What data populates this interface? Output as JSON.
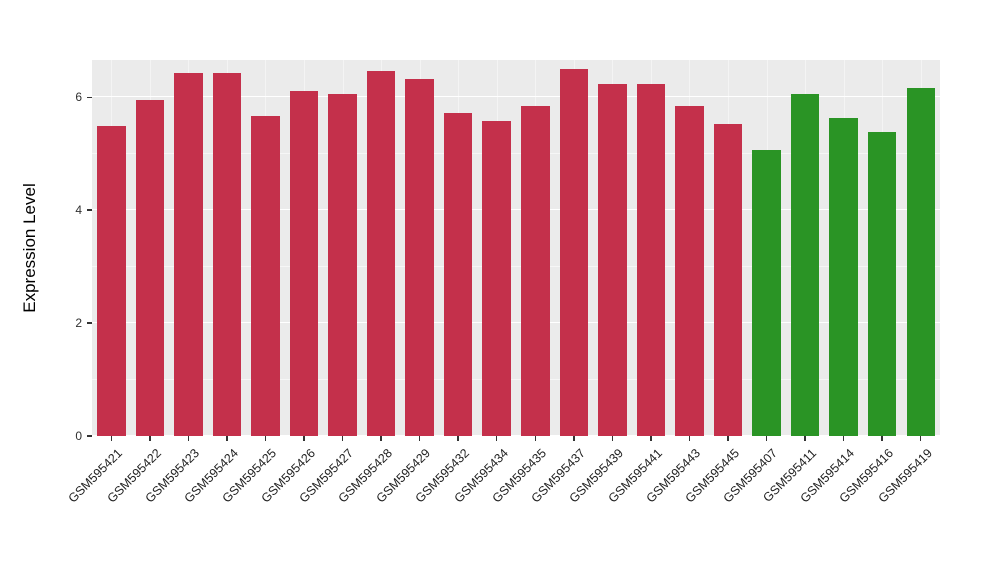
{
  "figure": {
    "background": "#FFFFFF",
    "panel_background": "#EBEBEB",
    "grid_color": "#FFFFFF",
    "axis_text_color": "#303030"
  },
  "chart_data": {
    "type": "bar",
    "title": "",
    "xlabel": "",
    "ylabel": "Expression Level",
    "ylim": [
      0,
      6.66
    ],
    "yticks": [
      0,
      2,
      4,
      6
    ],
    "yticks_minor": [
      1,
      3,
      5
    ],
    "grid": true,
    "legend": "none",
    "categories": [
      "GSM595421",
      "GSM595422",
      "GSM595423",
      "GSM595424",
      "GSM595425",
      "GSM595426",
      "GSM595427",
      "GSM595428",
      "GSM595429",
      "GSM595432",
      "GSM595434",
      "GSM595435",
      "GSM595437",
      "GSM595439",
      "GSM595441",
      "GSM595443",
      "GSM595445",
      "GSM595407",
      "GSM595411",
      "GSM595414",
      "GSM595416",
      "GSM595419"
    ],
    "values": [
      5.5,
      5.95,
      6.43,
      6.43,
      5.67,
      6.11,
      6.06,
      6.47,
      6.33,
      5.72,
      5.58,
      5.85,
      6.5,
      6.23,
      6.23,
      5.85,
      5.53,
      5.07,
      6.06,
      5.63,
      5.38,
      6.17
    ],
    "groups": [
      "red",
      "red",
      "red",
      "red",
      "red",
      "red",
      "red",
      "red",
      "red",
      "red",
      "red",
      "red",
      "red",
      "red",
      "red",
      "red",
      "red",
      "green",
      "green",
      "green",
      "green",
      "green"
    ],
    "group_colors": {
      "red": "#C4304B",
      "green": "#2A9425"
    }
  }
}
